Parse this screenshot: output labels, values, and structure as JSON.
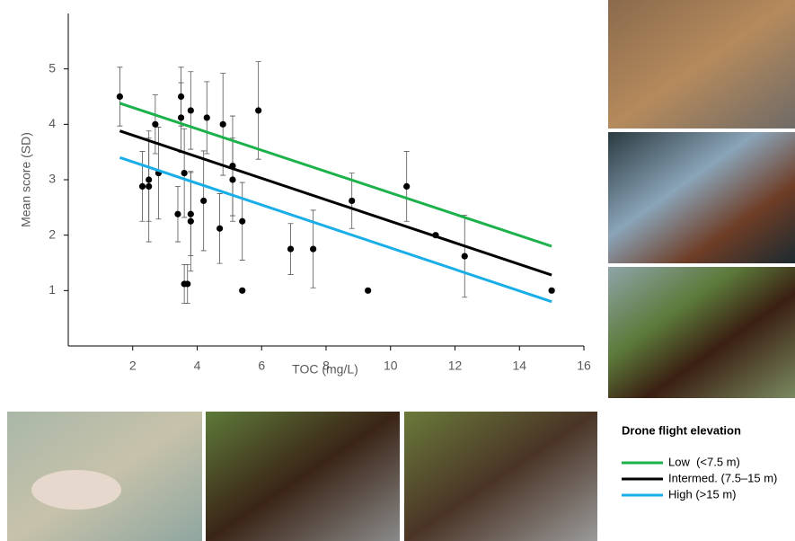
{
  "chart_data": {
    "type": "scatter",
    "xlabel": "TOC (mg/L)",
    "ylabel": "Mean score (SD)",
    "xlim": [
      0,
      16
    ],
    "ylim": [
      0,
      6
    ],
    "xticks": [
      2,
      4,
      6,
      8,
      10,
      12,
      14,
      16
    ],
    "yticks": [
      1,
      2,
      3,
      4,
      5
    ],
    "legend_title": "Drone flight elevation",
    "series": [
      {
        "color": "#000000",
        "x": [
          1.6,
          2.3,
          2.5,
          2.5,
          2.7,
          2.8,
          3.4,
          3.5,
          3.5,
          3.6,
          3.6,
          3.7,
          3.8,
          3.8,
          3.8,
          4.2,
          4.3,
          4.7,
          4.8,
          5.1,
          5.1,
          5.4,
          5.4,
          5.9,
          6.9,
          7.6,
          8.8,
          9.3,
          10.5,
          11.4,
          12.3,
          15.0
        ],
        "values": [
          4.5,
          2.88,
          3.0,
          2.88,
          4.0,
          3.12,
          2.38,
          4.5,
          4.12,
          3.12,
          1.12,
          1.12,
          4.25,
          2.38,
          2.25,
          2.62,
          4.12,
          2.12,
          4.0,
          3.25,
          3.0,
          2.25,
          1.0,
          4.25,
          1.75,
          1.75,
          2.62,
          1.0,
          2.88,
          2.0,
          1.62,
          1.0
        ],
        "errors": [
          0.53,
          0.63,
          0.75,
          1.0,
          0.53,
          0.83,
          0.5,
          0.53,
          0.63,
          0.8,
          0.35,
          0.35,
          0.7,
          0.75,
          0.9,
          0.9,
          0.65,
          0.63,
          0.92,
          0.9,
          0.75,
          0.7,
          0,
          0.88,
          0.46,
          0.7,
          0.5,
          0,
          0.63,
          0,
          0.74,
          0
        ]
      },
      {
        "name": "Low  (<7.5 m)",
        "color": "#1db14b",
        "x": [
          1.6,
          15
        ],
        "values": [
          4.38,
          1.8
        ]
      },
      {
        "name": "Intermed. (7.5–15 m)",
        "color": "#000000",
        "x": [
          1.6,
          15
        ],
        "values": [
          3.88,
          1.28
        ]
      },
      {
        "name": "High (>15 m)",
        "color": "#1aaee8",
        "x": [
          1.6,
          15
        ],
        "values": [
          3.4,
          0.8
        ]
      }
    ]
  }
}
